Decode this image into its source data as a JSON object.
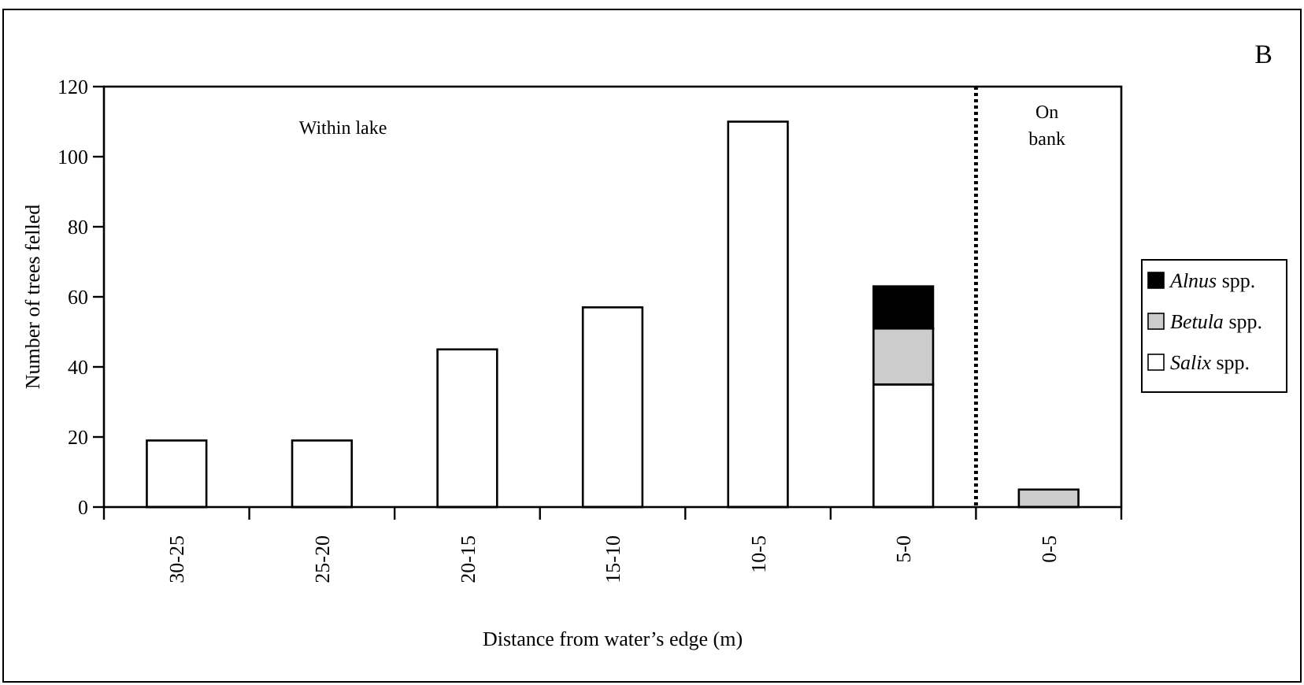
{
  "chart_data": {
    "type": "bar",
    "title": "B",
    "xlabel": "Distance from water’s edge (m)",
    "ylabel": "Number of trees felled",
    "categories": [
      "30-25",
      "25-20",
      "20-15",
      "15-10",
      "10-5",
      "5-0",
      "0-5"
    ],
    "stacked": true,
    "series": [
      {
        "name": "Salix spp.",
        "color": "#ffffff",
        "values": [
          19,
          19,
          45,
          57,
          110,
          35,
          0
        ]
      },
      {
        "name": "Betula spp.",
        "color": "#cccccc",
        "values": [
          0,
          0,
          0,
          0,
          0,
          16,
          5
        ]
      },
      {
        "name": "Alnus spp.",
        "color": "#000000",
        "values": [
          0,
          0,
          0,
          0,
          0,
          12,
          0
        ]
      }
    ],
    "ylim": [
      0,
      120
    ],
    "yticks": [
      0,
      20,
      40,
      60,
      80,
      100,
      120
    ],
    "annotations": [
      {
        "text": "Within lake"
      },
      {
        "text": "On bank"
      }
    ],
    "legend": "right",
    "grid": false
  }
}
